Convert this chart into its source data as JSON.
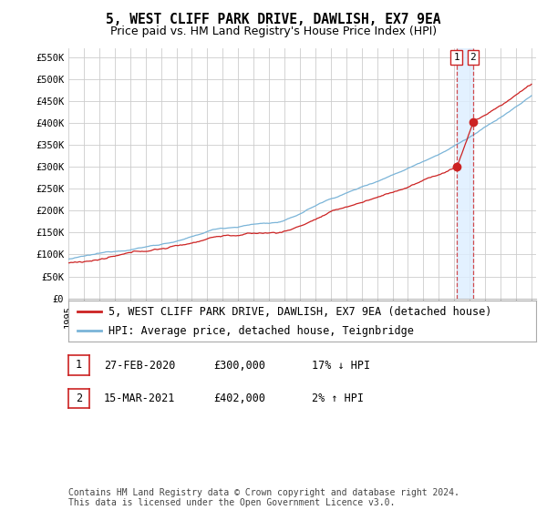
{
  "title": "5, WEST CLIFF PARK DRIVE, DAWLISH, EX7 9EA",
  "subtitle": "Price paid vs. HM Land Registry's House Price Index (HPI)",
  "ylabel_ticks": [
    "£0",
    "£50K",
    "£100K",
    "£150K",
    "£200K",
    "£250K",
    "£300K",
    "£350K",
    "£400K",
    "£450K",
    "£500K",
    "£550K"
  ],
  "ytick_values": [
    0,
    50000,
    100000,
    150000,
    200000,
    250000,
    300000,
    350000,
    400000,
    450000,
    500000,
    550000
  ],
  "ylim": [
    0,
    570000
  ],
  "xlim_start": 1995.0,
  "xlim_end": 2025.3,
  "sale1_date": 2020.14,
  "sale1_price": 300000,
  "sale1_label": "1",
  "sale2_date": 2021.21,
  "sale2_price": 402000,
  "sale2_label": "2",
  "hpi_color": "#7ab4d8",
  "price_color": "#cc2222",
  "sale_marker_color": "#cc2222",
  "vline_color": "#cc2222",
  "shade_color": "#ddeeff",
  "background_color": "#ffffff",
  "grid_color": "#cccccc",
  "legend_label_price": "5, WEST CLIFF PARK DRIVE, DAWLISH, EX7 9EA (detached house)",
  "legend_label_hpi": "HPI: Average price, detached house, Teignbridge",
  "table_row1": [
    "1",
    "27-FEB-2020",
    "£300,000",
    "17% ↓ HPI"
  ],
  "table_row2": [
    "2",
    "15-MAR-2021",
    "£402,000",
    "2% ↑ HPI"
  ],
  "footnote": "Contains HM Land Registry data © Crown copyright and database right 2024.\nThis data is licensed under the Open Government Licence v3.0.",
  "title_fontsize": 10.5,
  "subtitle_fontsize": 9,
  "tick_fontsize": 7.5,
  "legend_fontsize": 8.5,
  "table_fontsize": 8.5,
  "footnote_fontsize": 7
}
